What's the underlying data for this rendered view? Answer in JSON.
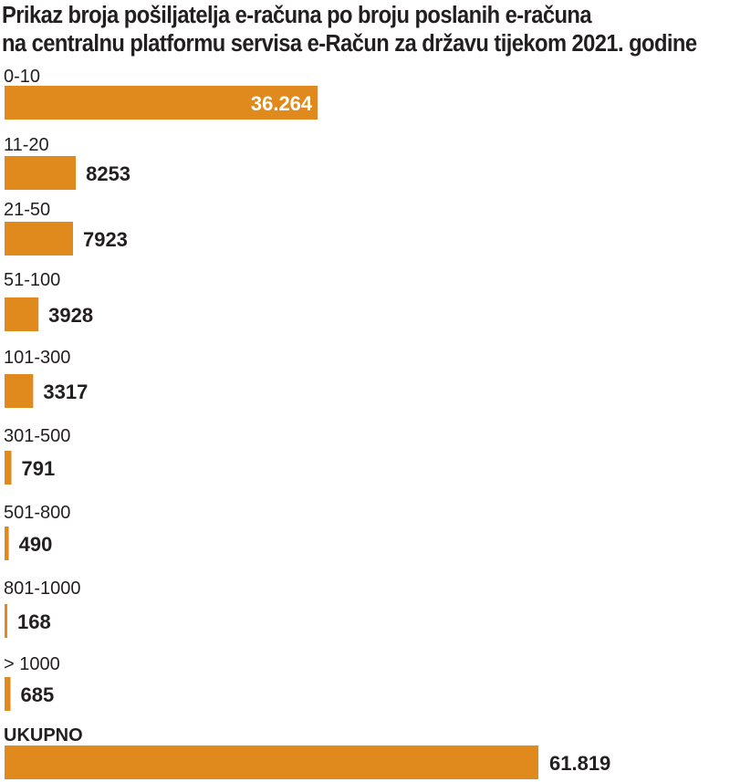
{
  "colors": {
    "bar": "#e08a1e",
    "text": "#231f20",
    "background": "#ffffff"
  },
  "chart_data": {
    "type": "bar",
    "orientation": "horizontal",
    "title_lines": [
      "Prikaz broja pošiljatelja e-računa po broju poslanih e-računa",
      "na centralnu platformu servisa e-Račun za državu tijekom 2021. godine"
    ],
    "xlabel": "",
    "ylabel": "",
    "xlim": [
      0,
      61819
    ],
    "grid": false,
    "legend": "none",
    "categories": [
      "0-10",
      "11-20",
      "21-50",
      "51-100",
      "101-300",
      "301-500",
      "501-800",
      "801-1000",
      "> 1000",
      "UKUPNO"
    ],
    "values": [
      36264,
      8253,
      7923,
      3928,
      3317,
      791,
      490,
      168,
      685,
      61819
    ],
    "value_labels": [
      "36.264",
      "8253",
      "7923",
      "3928",
      "3317",
      "791",
      "490",
      "168",
      "685",
      "61.819"
    ]
  }
}
